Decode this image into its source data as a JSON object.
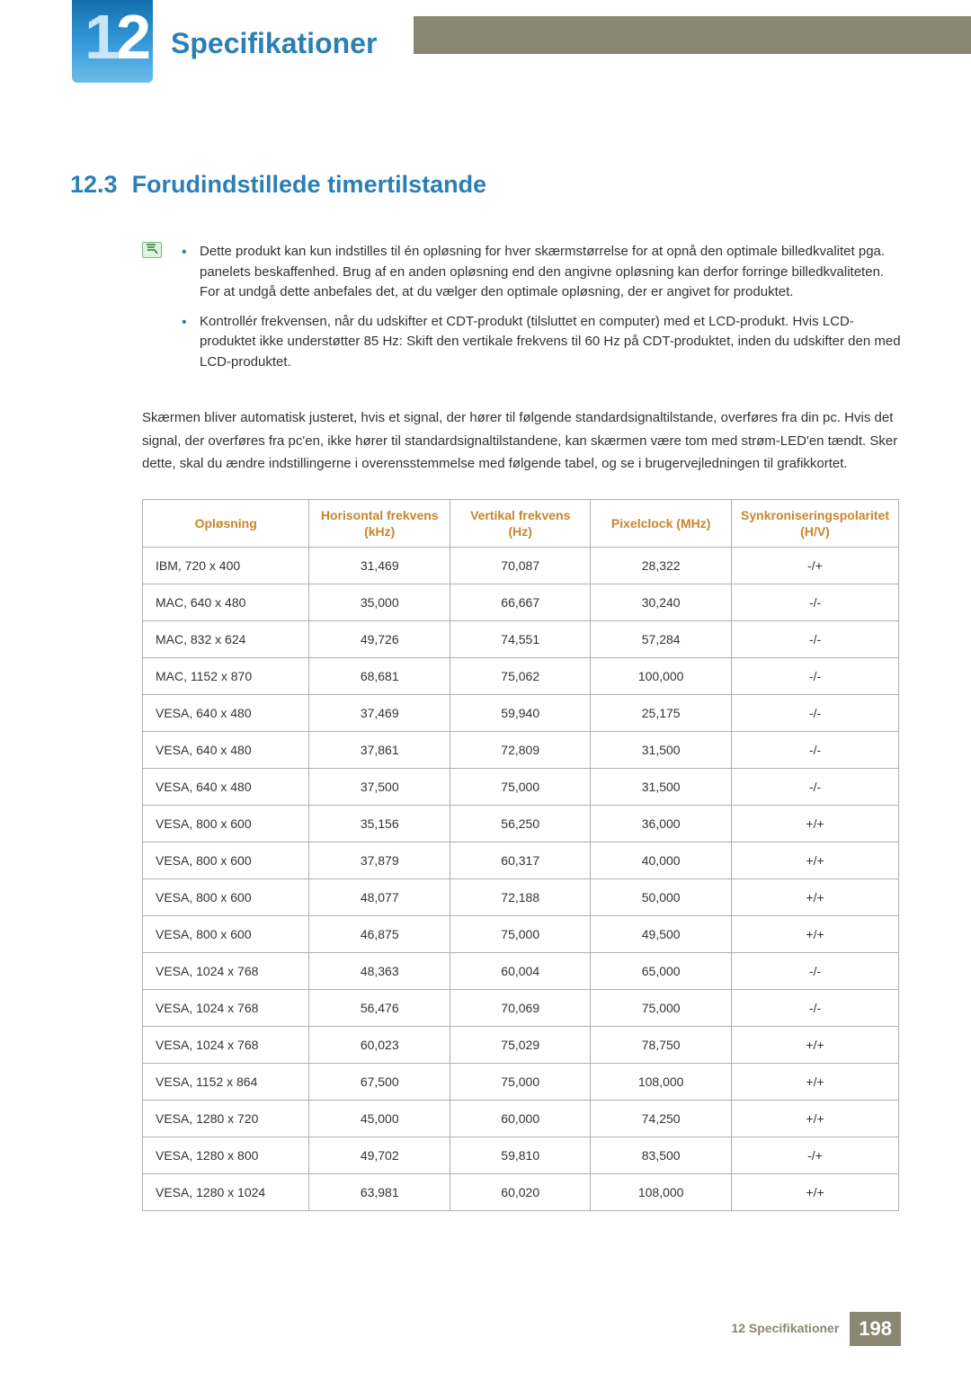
{
  "chapter": {
    "number": "12",
    "title": "Specifikationer"
  },
  "section": {
    "number": "12.3",
    "title": "Forudindstillede timertilstande"
  },
  "notes": [
    "Dette produkt kan kun indstilles til én opløsning for hver skærmstørrelse for at opnå den optimale billedkvalitet pga. panelets beskaffenhed. Brug af en anden opløsning end den angivne opløsning kan derfor forringe billedkvaliteten. For at undgå dette anbefales det, at du vælger den optimale opløsning, der er angivet for produktet.",
    "Kontrollér frekvensen, når du udskifter et CDT-produkt (tilsluttet en computer) med et LCD-produkt. Hvis LCD-produktet ikke understøtter 85 Hz: Skift den vertikale frekvens til 60 Hz på CDT-produktet, inden du udskifter den med LCD-produktet."
  ],
  "body": "Skærmen bliver automatisk justeret, hvis et signal, der hører til følgende standardsignaltilstande, overføres fra din pc. Hvis det signal, der overføres fra pc'en, ikke hører til standardsignaltilstandene, kan skærmen være tom med strøm-LED'en tændt. Sker dette, skal du ændre indstillingerne i overensstemmelse med følgende tabel, og se i brugervejledningen til grafikkortet.",
  "table": {
    "columns": [
      "Opløsning",
      "Horisontal frekvens (kHz)",
      "Vertikal frekvens (Hz)",
      "Pixelclock (MHz)",
      "Synkroniseringspolaritet (H/V)"
    ],
    "col_widths": [
      "190px",
      "160px",
      "160px",
      "160px",
      "170px"
    ],
    "header_color": "#c7852d",
    "border_color": "#b0b0b0",
    "rows": [
      [
        "IBM, 720 x 400",
        "31,469",
        "70,087",
        "28,322",
        "-/+"
      ],
      [
        "MAC, 640 x 480",
        "35,000",
        "66,667",
        "30,240",
        "-/-"
      ],
      [
        "MAC, 832 x 624",
        "49,726",
        "74,551",
        "57,284",
        "-/-"
      ],
      [
        "MAC, 1152 x 870",
        "68,681",
        "75,062",
        "100,000",
        "-/-"
      ],
      [
        "VESA, 640 x 480",
        "37,469",
        "59,940",
        "25,175",
        "-/-"
      ],
      [
        "VESA, 640 x 480",
        "37,861",
        "72,809",
        "31,500",
        "-/-"
      ],
      [
        "VESA, 640 x 480",
        "37,500",
        "75,000",
        "31,500",
        "-/-"
      ],
      [
        "VESA, 800 x 600",
        "35,156",
        "56,250",
        "36,000",
        "+/+"
      ],
      [
        "VESA, 800 x 600",
        "37,879",
        "60,317",
        "40,000",
        "+/+"
      ],
      [
        "VESA, 800 x 600",
        "48,077",
        "72,188",
        "50,000",
        "+/+"
      ],
      [
        "VESA, 800 x 600",
        "46,875",
        "75,000",
        "49,500",
        "+/+"
      ],
      [
        "VESA, 1024 x 768",
        "48,363",
        "60,004",
        "65,000",
        "-/-"
      ],
      [
        "VESA, 1024 x 768",
        "56,476",
        "70,069",
        "75,000",
        "-/-"
      ],
      [
        "VESA, 1024 x 768",
        "60,023",
        "75,029",
        "78,750",
        "+/+"
      ],
      [
        "VESA, 1152 x 864",
        "67,500",
        "75,000",
        "108,000",
        "+/+"
      ],
      [
        "VESA, 1280 x 720",
        "45,000",
        "60,000",
        "74,250",
        "+/+"
      ],
      [
        "VESA, 1280 x 800",
        "49,702",
        "59,810",
        "83,500",
        "-/+"
      ],
      [
        "VESA, 1280 x 1024",
        "63,981",
        "60,020",
        "108,000",
        "+/+"
      ]
    ]
  },
  "footer": {
    "chapter_label": "12 Specifikationer",
    "page": "198"
  },
  "colors": {
    "accent_blue": "#2b7fb4",
    "olive": "#8b8670",
    "header_text": "#c7852d"
  }
}
